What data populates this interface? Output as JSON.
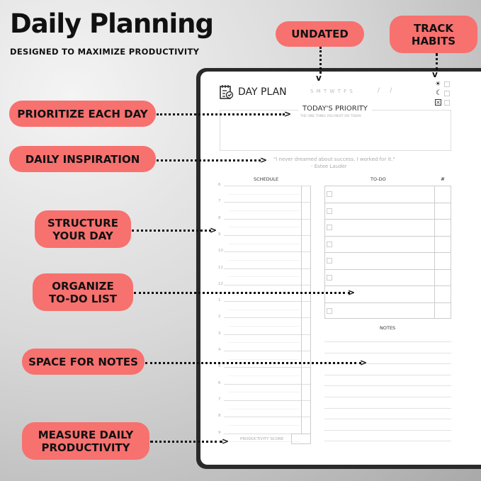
{
  "header": {
    "title": "Daily Planning",
    "subtitle": "DESIGNED TO MAXIMIZE PRODUCTIVITY"
  },
  "callouts": {
    "undated": "UNDATED",
    "track_habits": "TRACK HABITS",
    "prioritize": "PRIORITIZE EACH DAY",
    "inspiration": "DAILY INSPIRATION",
    "structure": "STRUCTURE YOUR DAY",
    "organize": "ORGANIZE TO-DO LIST",
    "notes": "SPACE FOR NOTES",
    "measure": "MEASURE DAILY PRODUCTIVITY"
  },
  "accent": "#f7716f",
  "planner": {
    "title": "DAY PLAN",
    "days": "S M T W T F S",
    "date": "/     /",
    "priority_title": "TODAY'S PRIORITY",
    "priority_sub": "THE ONE THING YOU MUST DO TODAY",
    "quote": "\"I never dreamed about success. I worked for it.\"",
    "quote_author": "- Estee Lauder",
    "schedule_label": "SCHEDULE",
    "todo_label": "TO-DO",
    "count_label": "#",
    "notes_label": "NOTES",
    "hours": [
      "6",
      "7",
      "8",
      "9",
      "10",
      "11",
      "12",
      "1",
      "2",
      "3",
      "4",
      "5",
      "6",
      "7",
      "8",
      "9"
    ],
    "productivity_label": "PRODUCTIVITY SCORE",
    "habit_icons": [
      "sun-icon",
      "moon-icon",
      "x-box-icon"
    ]
  }
}
